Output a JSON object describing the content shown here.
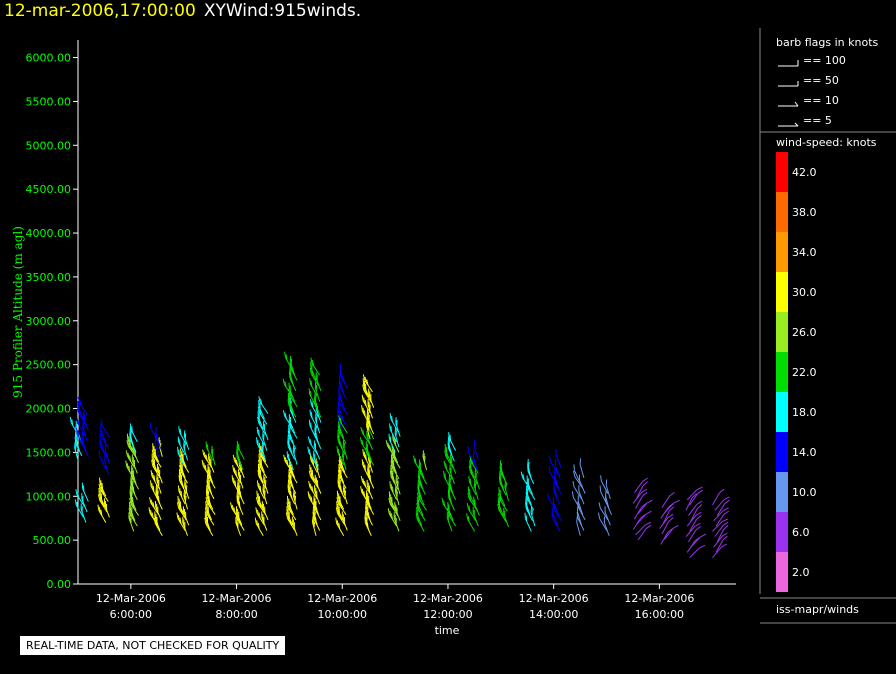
{
  "header": {
    "timestamp": "12-mar-2006,17:00:00",
    "title": "XYWind:915winds."
  },
  "disclaimer": "REAL-TIME DATA, NOT CHECKED FOR QUALITY",
  "colors": {
    "background": "#000000",
    "axis": "#ffffff",
    "y_axis_text": "#00ff00",
    "header_time": "#ffff00"
  },
  "chart_data": {
    "type": "wind-barb",
    "xlabel": "time",
    "ylabel": "915 Profiler Altitude (m agl)",
    "ylim": [
      0,
      6200
    ],
    "xlim_hours": [
      5.0,
      17.45
    ],
    "yticks": [
      "0.00",
      "500.00",
      "1000.00",
      "1500.00",
      "2000.00",
      "2500.00",
      "3000.00",
      "3500.00",
      "4000.00",
      "4500.00",
      "5000.00",
      "5500.00",
      "6000.00"
    ],
    "xticks": [
      {
        "hour": 6,
        "date": "12-Mar-2006",
        "time": "6:00:00"
      },
      {
        "hour": 8,
        "date": "12-Mar-2006",
        "time": "8:00:00"
      },
      {
        "hour": 10,
        "date": "12-Mar-2006",
        "time": "10:00:00"
      },
      {
        "hour": 12,
        "date": "12-Mar-2006",
        "time": "12:00:00"
      },
      {
        "hour": 14,
        "date": "12-Mar-2006",
        "time": "14:00:00"
      },
      {
        "hour": 16,
        "date": "12-Mar-2006",
        "time": "16:00:00"
      }
    ],
    "barb_legend": {
      "title": "barb flags in knots",
      "items": [
        {
          "label": "== 100",
          "value": 100
        },
        {
          "label": "== 50",
          "value": 50
        },
        {
          "label": "== 10",
          "value": 10
        },
        {
          "label": "== 5",
          "value": 5
        }
      ]
    },
    "color_scale": {
      "title": "wind-speed: knots",
      "bins": [
        {
          "label": "42.0",
          "color": "#ff0000"
        },
        {
          "label": "38.0",
          "color": "#ff6a00"
        },
        {
          "label": "34.0",
          "color": "#ff9900"
        },
        {
          "label": "30.0",
          "color": "#ffff00"
        },
        {
          "label": "26.0",
          "color": "#99ee22"
        },
        {
          "label": "22.0",
          "color": "#00dd00"
        },
        {
          "label": "18.0",
          "color": "#00ffff"
        },
        {
          "label": "14.0",
          "color": "#0000ff"
        },
        {
          "label": "10.0",
          "color": "#6699ee"
        },
        {
          "label": "6.0",
          "color": "#9933ee"
        },
        {
          "label": "2.0",
          "color": "#ee66dd"
        }
      ]
    },
    "source_label": "iss-mapr/winds",
    "series": [
      {
        "time": 5.05,
        "speed": 16,
        "alt_from": 1400,
        "alt_to": 1700
      },
      {
        "time": 5.15,
        "speed": 18,
        "alt_from": 700,
        "alt_to": 950
      },
      {
        "time": 5.15,
        "speed": 15,
        "alt_from": 1450,
        "alt_to": 1950
      },
      {
        "time": 5.55,
        "speed": 28,
        "alt_from": 700,
        "alt_to": 1050
      },
      {
        "time": 5.55,
        "speed": 14,
        "alt_from": 1250,
        "alt_to": 1700
      },
      {
        "time": 6.1,
        "speed": 26,
        "alt_from": 600,
        "alt_to": 1500
      },
      {
        "time": 6.1,
        "speed": 16,
        "alt_from": 1500,
        "alt_to": 1650
      },
      {
        "time": 6.55,
        "speed": 28,
        "alt_from": 550,
        "alt_to": 1450
      },
      {
        "time": 6.55,
        "speed": 14,
        "alt_from": 1450,
        "alt_to": 1650
      },
      {
        "time": 7.05,
        "speed": 28,
        "alt_from": 550,
        "alt_to": 1350
      },
      {
        "time": 7.05,
        "speed": 18,
        "alt_from": 1350,
        "alt_to": 1600
      },
      {
        "time": 7.55,
        "speed": 28,
        "alt_from": 550,
        "alt_to": 1350
      },
      {
        "time": 7.55,
        "speed": 22,
        "alt_from": 1350,
        "alt_to": 1450
      },
      {
        "time": 8.1,
        "speed": 28,
        "alt_from": 550,
        "alt_to": 1300
      },
      {
        "time": 8.1,
        "speed": 22,
        "alt_from": 1300,
        "alt_to": 1450
      },
      {
        "time": 8.55,
        "speed": 28,
        "alt_from": 550,
        "alt_to": 1400
      },
      {
        "time": 8.55,
        "speed": 18,
        "alt_from": 1400,
        "alt_to": 1950
      },
      {
        "time": 9.1,
        "speed": 28,
        "alt_from": 550,
        "alt_to": 1300
      },
      {
        "time": 9.1,
        "speed": 18,
        "alt_from": 1300,
        "alt_to": 1900
      },
      {
        "time": 9.1,
        "speed": 22,
        "alt_from": 1900,
        "alt_to": 2450
      },
      {
        "time": 9.55,
        "speed": 30,
        "alt_from": 550,
        "alt_to": 1300
      },
      {
        "time": 9.55,
        "speed": 18,
        "alt_from": 1300,
        "alt_to": 1900
      },
      {
        "time": 9.55,
        "speed": 22,
        "alt_from": 1900,
        "alt_to": 2400
      },
      {
        "time": 10.05,
        "speed": 28,
        "alt_from": 550,
        "alt_to": 1300
      },
      {
        "time": 10.05,
        "speed": 22,
        "alt_from": 1300,
        "alt_to": 1750
      },
      {
        "time": 10.05,
        "speed": 14,
        "alt_from": 1750,
        "alt_to": 2300
      },
      {
        "time": 10.55,
        "speed": 28,
        "alt_from": 550,
        "alt_to": 1350
      },
      {
        "time": 10.55,
        "speed": 22,
        "alt_from": 1350,
        "alt_to": 1650
      },
      {
        "time": 10.55,
        "speed": 28,
        "alt_from": 1650,
        "alt_to": 2200
      },
      {
        "time": 11.05,
        "speed": 26,
        "alt_from": 600,
        "alt_to": 1500
      },
      {
        "time": 11.05,
        "speed": 18,
        "alt_from": 1500,
        "alt_to": 1750
      },
      {
        "time": 11.55,
        "speed": 22,
        "alt_from": 600,
        "alt_to": 1300
      },
      {
        "time": 11.55,
        "speed": 26,
        "alt_from": 1300,
        "alt_to": 1350
      },
      {
        "time": 12.1,
        "speed": 22,
        "alt_from": 600,
        "alt_to": 1400
      },
      {
        "time": 12.1,
        "speed": 16,
        "alt_from": 1400,
        "alt_to": 1550
      },
      {
        "time": 12.55,
        "speed": 22,
        "alt_from": 600,
        "alt_to": 1300
      },
      {
        "time": 12.55,
        "speed": 14,
        "alt_from": 1300,
        "alt_to": 1450
      },
      {
        "time": 13.1,
        "speed": 22,
        "alt_from": 650,
        "alt_to": 1200
      },
      {
        "time": 13.6,
        "speed": 16,
        "alt_from": 600,
        "alt_to": 1250
      },
      {
        "time": 14.1,
        "speed": 14,
        "alt_from": 600,
        "alt_to": 1350
      },
      {
        "time": 14.55,
        "speed": 10,
        "alt_from": 550,
        "alt_to": 1250
      },
      {
        "time": 15.05,
        "speed": 10,
        "alt_from": 550,
        "alt_to": 1050
      },
      {
        "time": 15.55,
        "speed": 6,
        "alt_from": 500,
        "alt_to": 1050
      },
      {
        "time": 16.05,
        "speed": 6,
        "alt_from": 450,
        "alt_to": 900
      },
      {
        "time": 16.55,
        "speed": 6,
        "alt_from": 300,
        "alt_to": 1000
      },
      {
        "time": 17.05,
        "speed": 6,
        "alt_from": 300,
        "alt_to": 950
      }
    ]
  }
}
